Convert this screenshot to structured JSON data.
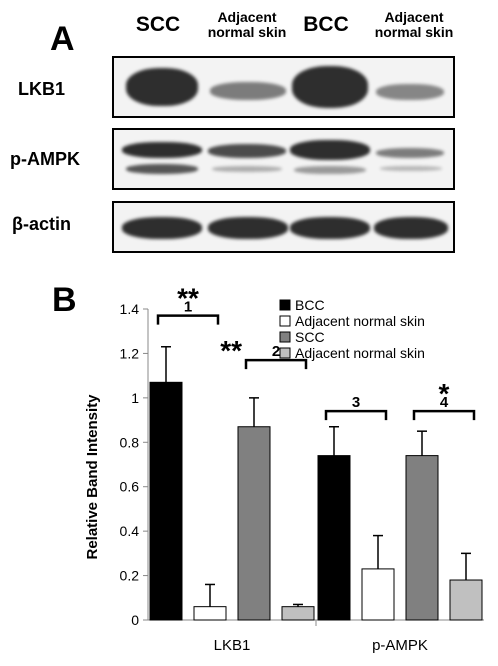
{
  "panel_a": {
    "letter": "A",
    "columns": [
      "SCC",
      "Adjacent\nnormal skin",
      "BCC",
      "Adjacent\nnormal skin"
    ],
    "rows": [
      {
        "label": "LKB1",
        "intensity": [
          0.95,
          0.5,
          1.0,
          0.45
        ]
      },
      {
        "label": "p-AMPK",
        "intensity": [
          0.85,
          0.6,
          0.95,
          0.45
        ]
      },
      {
        "label": "β-actin",
        "intensity": [
          0.9,
          0.9,
          0.85,
          0.85
        ]
      }
    ]
  },
  "panel_b": {
    "letter": "B"
  },
  "chart_data": {
    "type": "bar",
    "categories": [
      "LKB1",
      "p-AMPK"
    ],
    "ylabel": "Relative Band Intensity",
    "ylim": [
      0,
      1.4
    ],
    "yticks": [
      "0",
      "0.2",
      "0.4",
      "0.6",
      "0.8",
      "1",
      "1.2",
      "1.4"
    ],
    "series": [
      {
        "name": "BCC",
        "color": "#000000",
        "values": [
          1.07,
          0.74
        ],
        "errors": [
          0.16,
          0.13
        ]
      },
      {
        "name": "Adjacent normal skin",
        "color": "#ffffff",
        "values": [
          0.06,
          0.23
        ],
        "errors": [
          0.1,
          0.15
        ]
      },
      {
        "name": "SCC",
        "color": "#808080",
        "values": [
          0.87,
          0.74
        ],
        "errors": [
          0.13,
          0.11
        ]
      },
      {
        "name": "Adjacent normal skin",
        "color": "#c0c0c0",
        "values": [
          0.06,
          0.18
        ],
        "errors": [
          0.01,
          0.12
        ]
      }
    ],
    "annotations": [
      {
        "label": "1",
        "stars": "**"
      },
      {
        "label": "2",
        "stars": "**"
      },
      {
        "label": "3",
        "stars": ""
      },
      {
        "label": "4",
        "stars": "*"
      }
    ],
    "legend": "top-right"
  }
}
